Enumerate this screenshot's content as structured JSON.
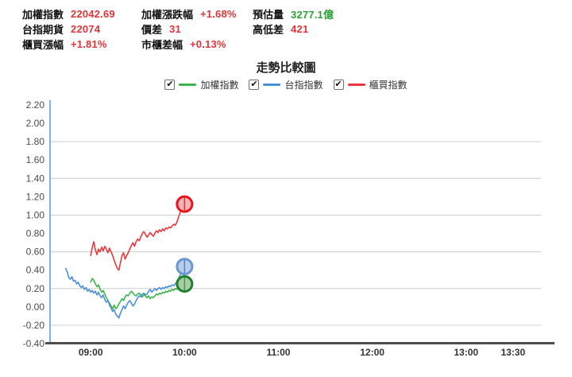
{
  "colors": {
    "up_red": "#e13438",
    "volume_green": "#2fa039",
    "label_black": "#111111",
    "grid_gray": "#cccccc",
    "y_axis_blue": "#7fb2e5",
    "x_axis_dark": "#4d4d4d",
    "y_tick_text": "#4a4a4a",
    "x_tick_text": "#333333"
  },
  "header": {
    "stats": [
      {
        "key": "weighted-index",
        "label": "加權指數",
        "value": "22042.69",
        "color": "#e13438"
      },
      {
        "key": "weighted-change-pct",
        "label": "加權漲跌幅",
        "value": "+1.68%",
        "color": "#e13438"
      },
      {
        "key": "estimated-volume",
        "label": "預估量",
        "value": "3277.1億",
        "color": "#2fa039"
      },
      {
        "key": "taiex-futures",
        "label": "台指期貨",
        "value": "22074",
        "color": "#e13438"
      },
      {
        "key": "price-diff",
        "label": "價差",
        "value": "31",
        "color": "#e13438"
      },
      {
        "key": "high-low-diff",
        "label": "高低差",
        "value": "421",
        "color": "#e13438"
      },
      {
        "key": "otc-change-pct",
        "label": "櫃買漲幅",
        "value": "+1.81%",
        "color": "#e13438"
      },
      {
        "key": "market-otc-diff-pct",
        "label": "市櫃差幅",
        "value": "+0.13%",
        "color": "#e13438"
      }
    ]
  },
  "chart_data": {
    "type": "line",
    "title": "走勢比較圖",
    "ylim": [
      -0.4,
      2.2
    ],
    "ytick_step": 0.2,
    "gridline_values": [
      1.8,
      1.4,
      1.0,
      0.6,
      0.2,
      -0.2
    ],
    "x_ticks": [
      "09:00",
      "10:00",
      "11:00",
      "12:00",
      "13:00",
      "13:30"
    ],
    "x_range": [
      "08:34",
      "13:56"
    ],
    "legend_position": "top-center",
    "legend": [
      {
        "key": "weighted-index",
        "label": "加權指數",
        "color": "#3cb44b",
        "checked": true
      },
      {
        "key": "taiex-index",
        "label": "台指指數",
        "color": "#4a90d9",
        "checked": true
      },
      {
        "key": "otc-index",
        "label": "櫃買指數",
        "color": "#e8383d",
        "checked": true
      }
    ],
    "checkbox_glyph": "✔",
    "series": [
      {
        "key": "weighted-index",
        "name": "加權指數",
        "color": "#3cb44b",
        "marker": {
          "stroke": "#1f7f2d",
          "fill": "#a8cda4",
          "inner": "#2d8f3c"
        },
        "points": [
          [
            "09:00",
            0.27
          ],
          [
            "09:01",
            0.31
          ],
          [
            "09:02",
            0.29
          ],
          [
            "09:03",
            0.25
          ],
          [
            "09:04",
            0.22
          ],
          [
            "09:05",
            0.24
          ],
          [
            "09:06",
            0.19
          ],
          [
            "09:07",
            0.16
          ],
          [
            "09:08",
            0.18
          ],
          [
            "09:09",
            0.14
          ],
          [
            "09:10",
            0.1
          ],
          [
            "09:11",
            0.07
          ],
          [
            "09:12",
            0.04
          ],
          [
            "09:13",
            0.01
          ],
          [
            "09:14",
            -0.02
          ],
          [
            "09:15",
            0.02
          ],
          [
            "09:16",
            -0.02
          ],
          [
            "09:17",
            0.0
          ],
          [
            "09:18",
            0.03
          ],
          [
            "09:19",
            0.06
          ],
          [
            "09:20",
            0.09
          ],
          [
            "09:21",
            0.07
          ],
          [
            "09:22",
            0.11
          ],
          [
            "09:23",
            0.13
          ],
          [
            "09:24",
            0.12
          ],
          [
            "09:25",
            0.15
          ],
          [
            "09:26",
            0.17
          ],
          [
            "09:27",
            0.15
          ],
          [
            "09:28",
            0.13
          ],
          [
            "09:29",
            0.12
          ],
          [
            "09:30",
            0.14
          ],
          [
            "09:31",
            0.15
          ],
          [
            "09:32",
            0.13
          ],
          [
            "09:33",
            0.11
          ],
          [
            "09:34",
            0.13
          ],
          [
            "09:35",
            0.12
          ],
          [
            "09:36",
            0.1
          ],
          [
            "09:37",
            0.12
          ],
          [
            "09:38",
            0.09
          ],
          [
            "09:39",
            0.11
          ],
          [
            "09:40",
            0.1
          ],
          [
            "09:41",
            0.12
          ],
          [
            "09:42",
            0.14
          ],
          [
            "09:43",
            0.13
          ],
          [
            "09:44",
            0.15
          ],
          [
            "09:45",
            0.14
          ],
          [
            "09:46",
            0.16
          ],
          [
            "09:47",
            0.15
          ],
          [
            "09:48",
            0.17
          ],
          [
            "09:49",
            0.16
          ],
          [
            "09:50",
            0.18
          ],
          [
            "09:51",
            0.17
          ],
          [
            "09:52",
            0.19
          ],
          [
            "09:53",
            0.18
          ],
          [
            "09:54",
            0.2
          ],
          [
            "09:55",
            0.19
          ],
          [
            "09:56",
            0.21
          ],
          [
            "09:57",
            0.22
          ],
          [
            "09:58",
            0.23
          ],
          [
            "09:59",
            0.24
          ],
          [
            "10:00",
            0.25
          ]
        ]
      },
      {
        "key": "taiex-index",
        "name": "台指指數",
        "color": "#4a90d9",
        "marker": {
          "stroke": "#6b96d2",
          "fill": "#b8cde9",
          "inner": "#3a78c2"
        },
        "points": [
          [
            "08:44",
            0.42
          ],
          [
            "08:45",
            0.38
          ],
          [
            "08:46",
            0.32
          ],
          [
            "08:47",
            0.3
          ],
          [
            "08:48",
            0.33
          ],
          [
            "08:49",
            0.28
          ],
          [
            "08:50",
            0.29
          ],
          [
            "08:51",
            0.25
          ],
          [
            "08:52",
            0.27
          ],
          [
            "08:53",
            0.23
          ],
          [
            "08:54",
            0.21
          ],
          [
            "08:55",
            0.23
          ],
          [
            "08:56",
            0.19
          ],
          [
            "08:57",
            0.21
          ],
          [
            "08:58",
            0.17
          ],
          [
            "08:59",
            0.19
          ],
          [
            "09:00",
            0.16
          ],
          [
            "09:01",
            0.18
          ],
          [
            "09:02",
            0.15
          ],
          [
            "09:03",
            0.17
          ],
          [
            "09:04",
            0.13
          ],
          [
            "09:05",
            0.16
          ],
          [
            "09:06",
            0.12
          ],
          [
            "09:07",
            0.1
          ],
          [
            "09:08",
            0.13
          ],
          [
            "09:09",
            0.08
          ],
          [
            "09:10",
            0.05
          ],
          [
            "09:11",
            0.07
          ],
          [
            "09:12",
            0.02
          ],
          [
            "09:13",
            -0.01
          ],
          [
            "09:14",
            -0.05
          ],
          [
            "09:15",
            -0.03
          ],
          [
            "09:16",
            -0.08
          ],
          [
            "09:17",
            -0.1
          ],
          [
            "09:18",
            -0.12
          ],
          [
            "09:19",
            -0.07
          ],
          [
            "09:20",
            -0.03
          ],
          [
            "09:21",
            0.01
          ],
          [
            "09:22",
            -0.02
          ],
          [
            "09:23",
            0.02
          ],
          [
            "09:24",
            0.05
          ],
          [
            "09:25",
            0.07
          ],
          [
            "09:26",
            0.04
          ],
          [
            "09:27",
            0.01
          ],
          [
            "09:28",
            0.03
          ],
          [
            "09:29",
            0.07
          ],
          [
            "09:30",
            0.1
          ],
          [
            "09:31",
            0.12
          ],
          [
            "09:32",
            0.11
          ],
          [
            "09:33",
            0.14
          ],
          [
            "09:34",
            0.15
          ],
          [
            "09:35",
            0.13
          ],
          [
            "09:36",
            0.14
          ],
          [
            "09:37",
            0.17
          ],
          [
            "09:38",
            0.19
          ],
          [
            "09:39",
            0.16
          ],
          [
            "09:40",
            0.18
          ],
          [
            "09:41",
            0.2
          ],
          [
            "09:42",
            0.18
          ],
          [
            "09:43",
            0.2
          ],
          [
            "09:44",
            0.21
          ],
          [
            "09:45",
            0.19
          ],
          [
            "09:46",
            0.21
          ],
          [
            "09:47",
            0.2
          ],
          [
            "09:48",
            0.22
          ],
          [
            "09:49",
            0.21
          ],
          [
            "09:50",
            0.23
          ],
          [
            "09:51",
            0.22
          ],
          [
            "09:52",
            0.24
          ],
          [
            "09:53",
            0.23
          ],
          [
            "09:54",
            0.25
          ],
          [
            "09:55",
            0.27
          ],
          [
            "09:56",
            0.3
          ],
          [
            "09:57",
            0.34
          ],
          [
            "09:58",
            0.38
          ],
          [
            "09:59",
            0.41
          ],
          [
            "10:00",
            0.44
          ]
        ]
      },
      {
        "key": "otc-index",
        "name": "櫃買指數",
        "color": "#e8383d",
        "marker": {
          "stroke": "#e8151e",
          "fill": "#f5b3b5",
          "inner": "#cc2222"
        },
        "points": [
          [
            "09:00",
            0.56
          ],
          [
            "09:01",
            0.65
          ],
          [
            "09:02",
            0.71
          ],
          [
            "09:03",
            0.62
          ],
          [
            "09:04",
            0.57
          ],
          [
            "09:05",
            0.63
          ],
          [
            "09:06",
            0.6
          ],
          [
            "09:07",
            0.65
          ],
          [
            "09:08",
            0.61
          ],
          [
            "09:09",
            0.66
          ],
          [
            "09:10",
            0.63
          ],
          [
            "09:11",
            0.59
          ],
          [
            "09:12",
            0.64
          ],
          [
            "09:13",
            0.6
          ],
          [
            "09:14",
            0.56
          ],
          [
            "09:15",
            0.51
          ],
          [
            "09:16",
            0.46
          ],
          [
            "09:17",
            0.42
          ],
          [
            "09:18",
            0.4
          ],
          [
            "09:19",
            0.48
          ],
          [
            "09:20",
            0.56
          ],
          [
            "09:21",
            0.59
          ],
          [
            "09:22",
            0.52
          ],
          [
            "09:23",
            0.56
          ],
          [
            "09:24",
            0.59
          ],
          [
            "09:25",
            0.63
          ],
          [
            "09:26",
            0.67
          ],
          [
            "09:27",
            0.7
          ],
          [
            "09:28",
            0.66
          ],
          [
            "09:29",
            0.71
          ],
          [
            "09:30",
            0.74
          ],
          [
            "09:31",
            0.72
          ],
          [
            "09:32",
            0.76
          ],
          [
            "09:33",
            0.8
          ],
          [
            "09:34",
            0.82
          ],
          [
            "09:35",
            0.79
          ],
          [
            "09:36",
            0.76
          ],
          [
            "09:37",
            0.78
          ],
          [
            "09:38",
            0.81
          ],
          [
            "09:39",
            0.79
          ],
          [
            "09:40",
            0.77
          ],
          [
            "09:41",
            0.8
          ],
          [
            "09:42",
            0.83
          ],
          [
            "09:43",
            0.81
          ],
          [
            "09:44",
            0.84
          ],
          [
            "09:45",
            0.82
          ],
          [
            "09:46",
            0.85
          ],
          [
            "09:47",
            0.83
          ],
          [
            "09:48",
            0.86
          ],
          [
            "09:49",
            0.85
          ],
          [
            "09:50",
            0.87
          ],
          [
            "09:51",
            0.86
          ],
          [
            "09:52",
            0.88
          ],
          [
            "09:53",
            0.9
          ],
          [
            "09:54",
            0.89
          ],
          [
            "09:55",
            0.92
          ],
          [
            "09:56",
            0.97
          ],
          [
            "09:57",
            1.02
          ],
          [
            "09:58",
            1.06
          ],
          [
            "09:59",
            1.09
          ],
          [
            "10:00",
            1.12
          ]
        ]
      }
    ]
  }
}
